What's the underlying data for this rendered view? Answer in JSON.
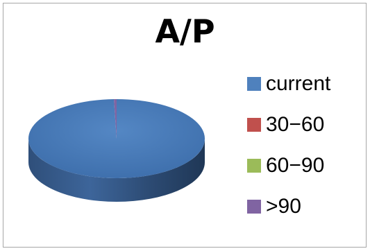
{
  "chart_data": {
    "type": "pie",
    "title": "A/P",
    "style": "3d",
    "categories": [
      "current",
      "30−60",
      "60−90",
      ">90"
    ],
    "values": [
      99.5,
      0,
      0,
      0.5
    ],
    "colors": [
      "#4f81bd",
      "#c0504d",
      "#9bbb59",
      "#8064a2"
    ],
    "legend_position": "right"
  }
}
